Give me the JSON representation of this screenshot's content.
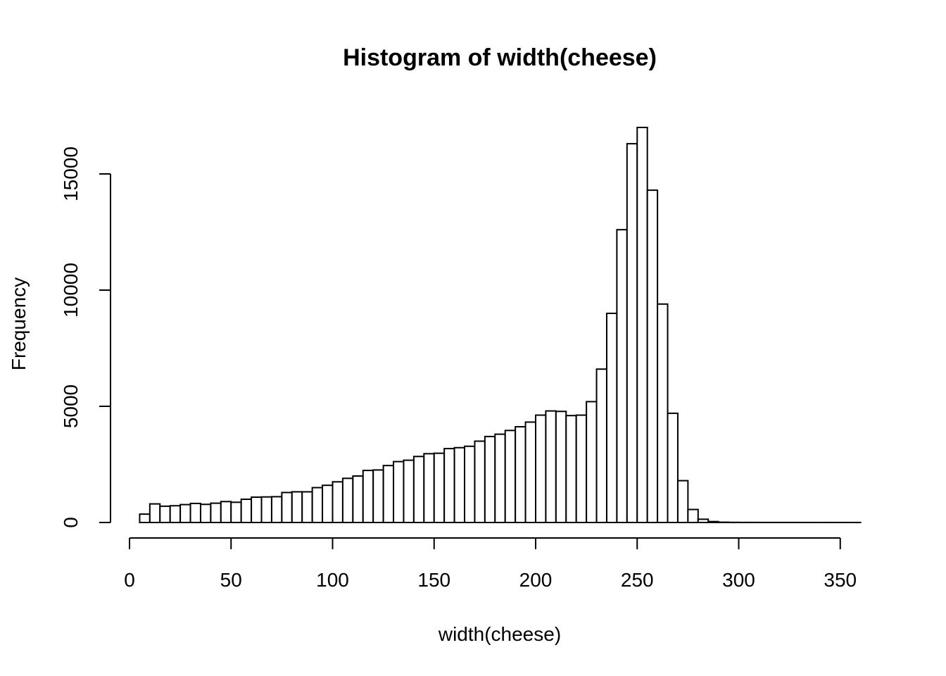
{
  "chart_data": {
    "type": "bar",
    "title": "Histogram of width(cheese)",
    "xlabel": "width(cheese)",
    "ylabel": "Frequency",
    "xlim": [
      0,
      360
    ],
    "ylim": [
      0,
      17000
    ],
    "x_ticks": [
      0,
      50,
      100,
      150,
      200,
      250,
      300,
      350
    ],
    "y_ticks": [
      0,
      5000,
      10000,
      15000
    ],
    "bin_width": 5,
    "bins_start": [
      5,
      10,
      15,
      20,
      25,
      30,
      35,
      40,
      45,
      50,
      55,
      60,
      65,
      70,
      75,
      80,
      85,
      90,
      95,
      100,
      105,
      110,
      115,
      120,
      125,
      130,
      135,
      140,
      145,
      150,
      155,
      160,
      165,
      170,
      175,
      180,
      185,
      190,
      195,
      200,
      205,
      210,
      215,
      220,
      225,
      230,
      235,
      240,
      245,
      250,
      255,
      260,
      265,
      270,
      275,
      280,
      285,
      290,
      295,
      300,
      305,
      310,
      315,
      320,
      325,
      330,
      335,
      340,
      345,
      350,
      355
    ],
    "values": [
      360,
      800,
      700,
      720,
      770,
      820,
      780,
      830,
      900,
      870,
      1000,
      1090,
      1100,
      1110,
      1290,
      1320,
      1320,
      1500,
      1600,
      1750,
      1900,
      2000,
      2240,
      2260,
      2450,
      2620,
      2680,
      2840,
      2960,
      2980,
      3180,
      3220,
      3280,
      3500,
      3700,
      3800,
      3960,
      4120,
      4320,
      4620,
      4800,
      4780,
      4600,
      4620,
      5200,
      6600,
      9000,
      12600,
      16300,
      17000,
      14300,
      9400,
      4700,
      1800,
      560,
      140,
      40,
      12,
      6,
      4,
      3,
      2,
      2,
      2,
      2,
      1,
      1,
      1,
      1,
      1,
      1
    ],
    "grid": false,
    "legend": "none"
  }
}
